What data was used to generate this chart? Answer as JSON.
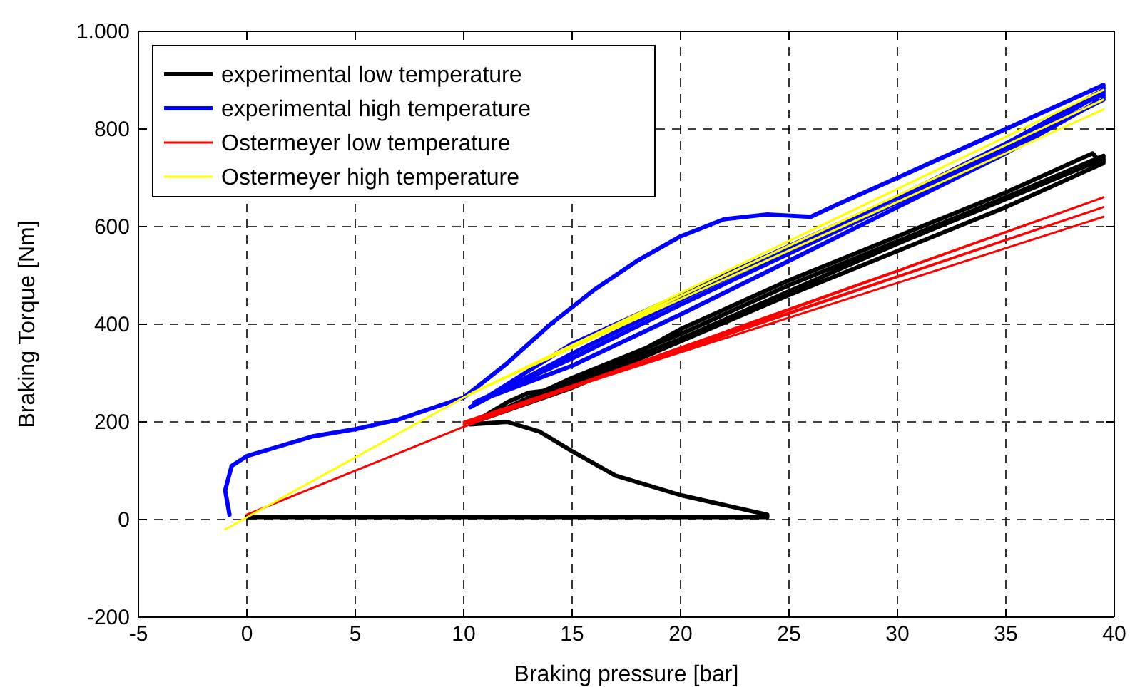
{
  "chart_data": {
    "type": "line",
    "xlabel": "Braking pressure [bar]",
    "ylabel": "Braking Torque [Nm]",
    "xlim": [
      -5,
      40
    ],
    "xticks": [
      -5,
      0,
      5,
      10,
      15,
      20,
      25,
      30,
      35,
      40
    ],
    "ylim": [
      -200,
      1000
    ],
    "yticks": [
      -200,
      0,
      200,
      400,
      600,
      800,
      {
        "value": 1000,
        "label": "1.000"
      }
    ],
    "grid": true,
    "legend": "top left",
    "series": [
      {
        "name": "experimental low temperature",
        "color": "#000000",
        "x": [
          0,
          24,
          24,
          22,
          20,
          17,
          15,
          13.5,
          12,
          10.3,
          15,
          20,
          25,
          30,
          35,
          39.5,
          39.5,
          35,
          30,
          25,
          20,
          15,
          10.5,
          12,
          13,
          14,
          15.5,
          20,
          25,
          30,
          35,
          39,
          39.3,
          30,
          20,
          11
        ],
        "values": [
          5,
          5,
          10,
          30,
          50,
          90,
          140,
          180,
          200,
          195,
          290,
          380,
          480,
          570,
          660,
          745,
          730,
          640,
          550,
          460,
          365,
          270,
          200,
          240,
          260,
          265,
          280,
          390,
          490,
          580,
          670,
          750,
          735,
          565,
          370,
          210
        ]
      },
      {
        "name": "experimental high temperature",
        "color": "#0000ff",
        "x": [
          -0.8,
          -1,
          -0.7,
          0,
          1.5,
          3,
          5,
          7,
          9,
          10,
          12,
          14,
          16,
          18,
          20,
          22,
          24,
          26,
          27.2,
          30,
          35,
          39.5,
          39.5,
          35,
          30,
          25,
          20,
          15,
          10.3,
          15,
          20,
          25,
          30,
          35,
          39.5,
          39,
          35,
          30,
          25,
          20,
          15,
          10.5,
          15,
          20,
          25,
          30,
          35,
          39.3
        ],
        "values": [
          10,
          60,
          110,
          130,
          150,
          170,
          185,
          205,
          235,
          250,
          320,
          400,
          470,
          530,
          580,
          615,
          625,
          620,
          645,
          700,
          800,
          890,
          860,
          760,
          660,
          560,
          460,
          360,
          230,
          340,
          450,
          555,
          660,
          770,
          880,
          850,
          750,
          640,
          530,
          420,
          315,
          240,
          330,
          440,
          545,
          650,
          760,
          870
        ]
      },
      {
        "name": "Ostermeyer low temperature",
        "color": "#ff0000",
        "x": [
          0,
          10,
          39.5,
          10,
          39.5,
          10,
          39.5
        ],
        "values": [
          10,
          190,
          660,
          195,
          640,
          200,
          620
        ]
      },
      {
        "name": "Ostermeyer high temperature",
        "color": "#ffff00",
        "x": [
          -1,
          10,
          39.5,
          10.2,
          39.5,
          10.4,
          39.5
        ],
        "values": [
          -20,
          250,
          880,
          255,
          860,
          260,
          840
        ]
      }
    ]
  }
}
